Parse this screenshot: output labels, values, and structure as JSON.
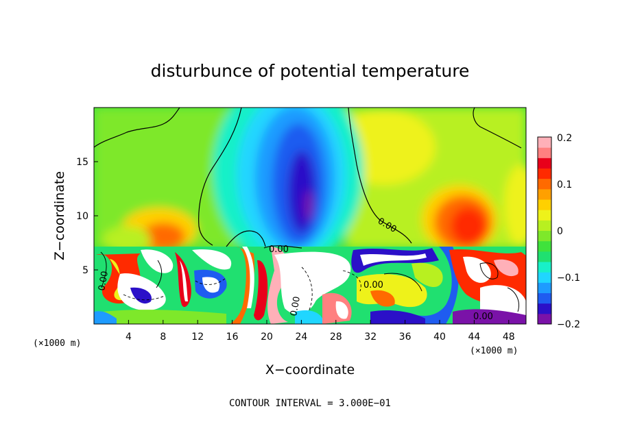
{
  "chart_data": {
    "type": "heatmap",
    "title": "disturbunce of potential temperature",
    "xlabel": "X−coordinate",
    "ylabel": "Z−coordinate",
    "x_unit_left": "(×1000 m)",
    "x_unit_right": "(×1000 m)",
    "x_ticks": [
      "4",
      "8",
      "12",
      "16",
      "20",
      "24",
      "28",
      "32",
      "36",
      "40",
      "44",
      "48"
    ],
    "y_ticks": [
      "5",
      "10",
      "15"
    ],
    "xlim": [
      0,
      50
    ],
    "ylim": [
      0,
      20
    ],
    "colorbar": {
      "labels": [
        "0.2",
        "0.1",
        "0",
        "−0.1",
        "−0.2"
      ],
      "range": [
        -0.2,
        0.2
      ],
      "colors": [
        "#7a12a8",
        "#2b10c8",
        "#1f5cf0",
        "#1e9bff",
        "#20d6ff",
        "#18f0c8",
        "#20e070",
        "#3fe23c",
        "#7ee82a",
        "#b8f020",
        "#eef21a",
        "#ffd000",
        "#ffa000",
        "#ff6a00",
        "#ff2a00",
        "#e8001a",
        "#ff8080",
        "#ffb0b8"
      ]
    },
    "contour_labels": [
      "0.00",
      "0.00",
      "0.00",
      "0.00",
      "0.00",
      "0.00"
    ],
    "annotation": "CONTOUR INTERVAL = 3.000E−01"
  }
}
